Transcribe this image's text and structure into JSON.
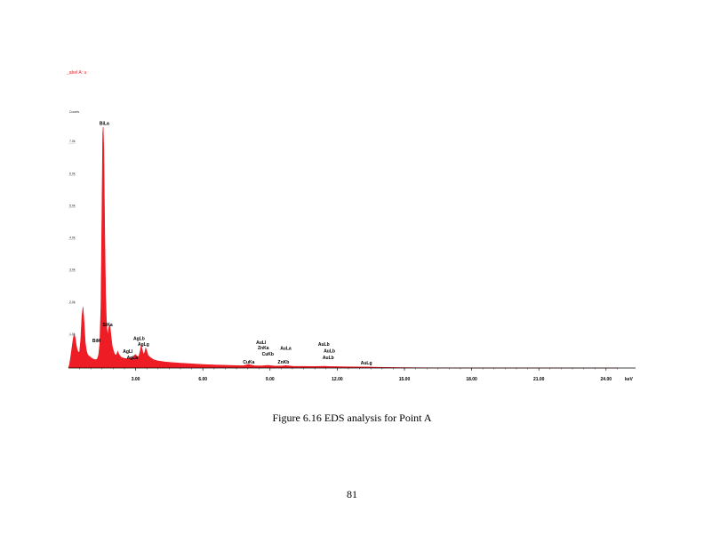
{
  "chart_data": {
    "type": "area",
    "title": "_abel A: u",
    "ylabel": "Counts",
    "xlabel": "keV",
    "xlim": [
      0,
      25
    ],
    "ylim": [
      0,
      8000
    ],
    "x_ticks": [
      3,
      6,
      9,
      12,
      15,
      18,
      21,
      24
    ],
    "x_tick_labels": [
      "3.00",
      "6.00",
      "9.00",
      "12.00",
      "15.00",
      "18.00",
      "21.00",
      "24.00"
    ],
    "y_ticks": [
      1000,
      2000,
      3000,
      4000,
      5000,
      6000,
      7000
    ],
    "y_tick_labels": [
      "1.0k",
      "2.0k",
      "3.0k",
      "4.0k",
      "5.0k",
      "6.0k",
      "7.0k"
    ],
    "grid": false,
    "series_color": "#ee1c24",
    "spectrum": [
      [
        0.0,
        0
      ],
      [
        0.05,
        120
      ],
      [
        0.1,
        350
      ],
      [
        0.15,
        600
      ],
      [
        0.2,
        850
      ],
      [
        0.25,
        1050
      ],
      [
        0.3,
        950
      ],
      [
        0.35,
        700
      ],
      [
        0.4,
        550
      ],
      [
        0.45,
        480
      ],
      [
        0.5,
        520
      ],
      [
        0.55,
        900
      ],
      [
        0.6,
        1600
      ],
      [
        0.65,
        1900
      ],
      [
        0.7,
        1400
      ],
      [
        0.75,
        800
      ],
      [
        0.8,
        550
      ],
      [
        0.85,
        430
      ],
      [
        0.9,
        380
      ],
      [
        0.95,
        360
      ],
      [
        1.0,
        330
      ],
      [
        1.05,
        300
      ],
      [
        1.1,
        280
      ],
      [
        1.15,
        270
      ],
      [
        1.2,
        260
      ],
      [
        1.25,
        265
      ],
      [
        1.3,
        300
      ],
      [
        1.35,
        420
      ],
      [
        1.4,
        750
      ],
      [
        1.45,
        1900
      ],
      [
        1.5,
        5200
      ],
      [
        1.53,
        7300
      ],
      [
        1.55,
        7500
      ],
      [
        1.58,
        6800
      ],
      [
        1.62,
        4200
      ],
      [
        1.66,
        2300
      ],
      [
        1.7,
        1350
      ],
      [
        1.75,
        1000
      ],
      [
        1.8,
        1250
      ],
      [
        1.85,
        1350
      ],
      [
        1.9,
        1000
      ],
      [
        1.95,
        700
      ],
      [
        2.0,
        560
      ],
      [
        2.05,
        450
      ],
      [
        2.1,
        400
      ],
      [
        2.15,
        420
      ],
      [
        2.2,
        520
      ],
      [
        2.25,
        430
      ],
      [
        2.3,
        380
      ],
      [
        2.35,
        340
      ],
      [
        2.4,
        320
      ],
      [
        2.5,
        300
      ],
      [
        2.6,
        290
      ],
      [
        2.7,
        300
      ],
      [
        2.8,
        310
      ],
      [
        2.9,
        340
      ],
      [
        2.98,
        420
      ],
      [
        3.05,
        380
      ],
      [
        3.1,
        340
      ],
      [
        3.15,
        380
      ],
      [
        3.2,
        520
      ],
      [
        3.25,
        700
      ],
      [
        3.3,
        560
      ],
      [
        3.35,
        420
      ],
      [
        3.4,
        480
      ],
      [
        3.45,
        620
      ],
      [
        3.5,
        530
      ],
      [
        3.55,
        400
      ],
      [
        3.65,
        330
      ],
      [
        3.8,
        260
      ],
      [
        4.0,
        220
      ],
      [
        4.3,
        190
      ],
      [
        4.6,
        170
      ],
      [
        5.0,
        150
      ],
      [
        5.5,
        130
      ],
      [
        6.0,
        110
      ],
      [
        6.5,
        95
      ],
      [
        7.0,
        85
      ],
      [
        7.5,
        75
      ],
      [
        7.8,
        70
      ],
      [
        8.04,
        110
      ],
      [
        8.3,
        70
      ],
      [
        8.6,
        65
      ],
      [
        8.9,
        80
      ],
      [
        9.2,
        60
      ],
      [
        9.5,
        60
      ],
      [
        9.71,
        75
      ],
      [
        10.0,
        55
      ],
      [
        10.5,
        50
      ],
      [
        11.0,
        48
      ],
      [
        11.44,
        55
      ],
      [
        11.7,
        45
      ],
      [
        12.0,
        42
      ],
      [
        12.5,
        38
      ],
      [
        13.0,
        35
      ],
      [
        13.4,
        30
      ],
      [
        14.0,
        20
      ],
      [
        15.0,
        12
      ],
      [
        16.0,
        5
      ],
      [
        18.0,
        2
      ],
      [
        20.0,
        1
      ],
      [
        22.0,
        0
      ],
      [
        24.5,
        0
      ]
    ],
    "peak_labels": [
      {
        "text": "BiLa",
        "energy": 1.6,
        "counts": 7550
      },
      {
        "text": "SiKa",
        "energy": 1.75,
        "counts": 1280
      },
      {
        "text": "BiM",
        "energy": 1.25,
        "counts": 780
      },
      {
        "text": "AgLb",
        "energy": 3.15,
        "counts": 840
      },
      {
        "text": "AgLg",
        "energy": 3.35,
        "counts": 660
      },
      {
        "text": "AgLl",
        "energy": 2.65,
        "counts": 440
      },
      {
        "text": "AgLa",
        "energy": 2.85,
        "counts": 250
      },
      {
        "text": "AuLl",
        "energy": 8.6,
        "counts": 720
      },
      {
        "text": "ZnKa",
        "energy": 8.7,
        "counts": 550
      },
      {
        "text": "CuKb",
        "energy": 8.9,
        "counts": 360
      },
      {
        "text": "CuKa",
        "energy": 8.05,
        "counts": 110
      },
      {
        "text": "AuLa",
        "energy": 9.7,
        "counts": 540
      },
      {
        "text": "ZnKb",
        "energy": 9.6,
        "counts": 110
      },
      {
        "text": "AuLb",
        "energy": 11.4,
        "counts": 660
      },
      {
        "text": "AuLb",
        "energy": 11.65,
        "counts": 460
      },
      {
        "text": "AuLb",
        "energy": 11.6,
        "counts": 250
      },
      {
        "text": "AuLg",
        "energy": 13.3,
        "counts": 80
      }
    ]
  },
  "caption": "Figure 6.16 EDS analysis for Point A",
  "page_number": "81"
}
